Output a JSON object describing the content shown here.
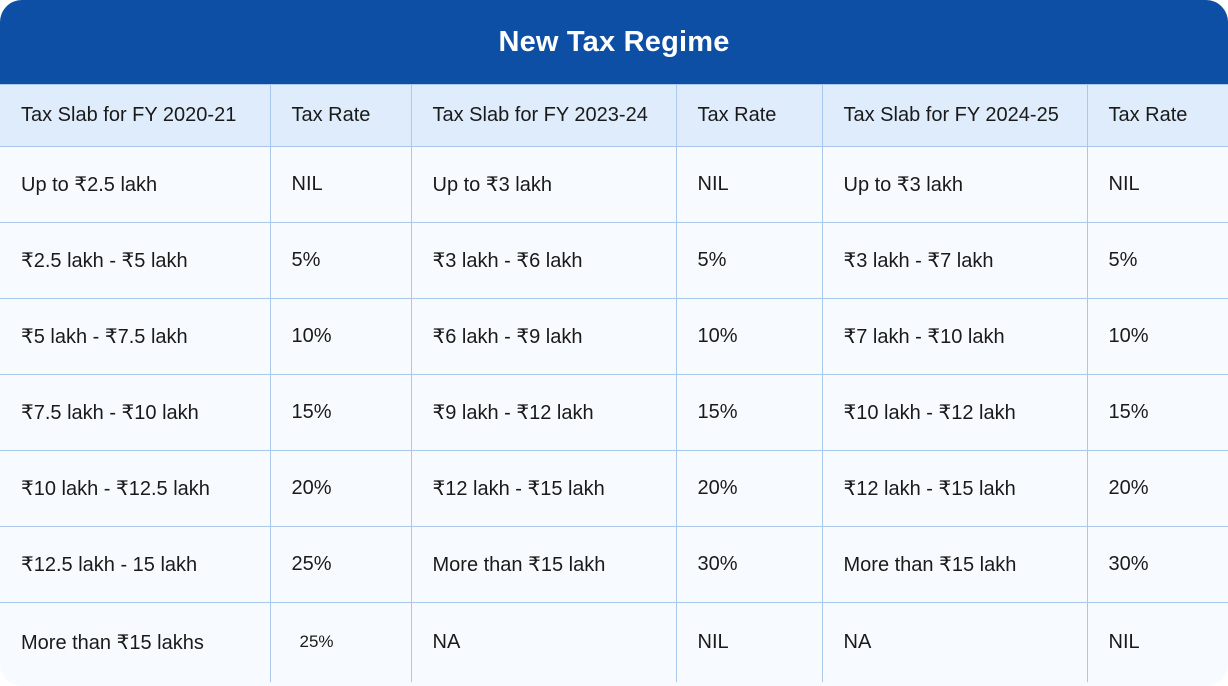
{
  "title": "New Tax Regime",
  "headers": [
    "Tax Slab for FY 2020-21",
    "Tax Rate",
    "Tax Slab for FY 2023-24",
    "Tax Rate",
    "Tax Slab for FY 2024-25",
    "Tax Rate"
  ],
  "rows": [
    [
      "Up to ₹2.5 lakh",
      "NIL",
      "Up to ₹3 lakh",
      "NIL",
      "Up to ₹3 lakh",
      "NIL"
    ],
    [
      "₹2.5 lakh - ₹5 lakh",
      "5%",
      "₹3 lakh - ₹6 lakh",
      "5%",
      "₹3 lakh - ₹7 lakh",
      "5%"
    ],
    [
      "₹5 lakh - ₹7.5 lakh",
      "10%",
      "₹6 lakh - ₹9 lakh",
      "10%",
      "₹7 lakh - ₹10 lakh",
      "10%"
    ],
    [
      "₹7.5 lakh - ₹10 lakh",
      "15%",
      "₹9 lakh - ₹12 lakh",
      "15%",
      "₹10 lakh - ₹12 lakh",
      "15%"
    ],
    [
      "₹10 lakh - ₹12.5 lakh",
      "20%",
      "₹12 lakh - ₹15 lakh",
      "20%",
      "₹12 lakh - ₹15 lakh",
      "20%"
    ],
    [
      "₹12.5 lakh - 15 lakh",
      "25%",
      "More than ₹15 lakh",
      "30%",
      "More than ₹15 lakh",
      "30%"
    ],
    [
      "More than ₹15 lakhs",
      "25%",
      "NA",
      "NIL",
      "NA",
      "NIL"
    ]
  ],
  "colors": {
    "title_bar": "#0d4fa4",
    "header_bg": "#deecfb",
    "grid_line": "#a9c8ec",
    "body_bg": "#f7fbff"
  }
}
